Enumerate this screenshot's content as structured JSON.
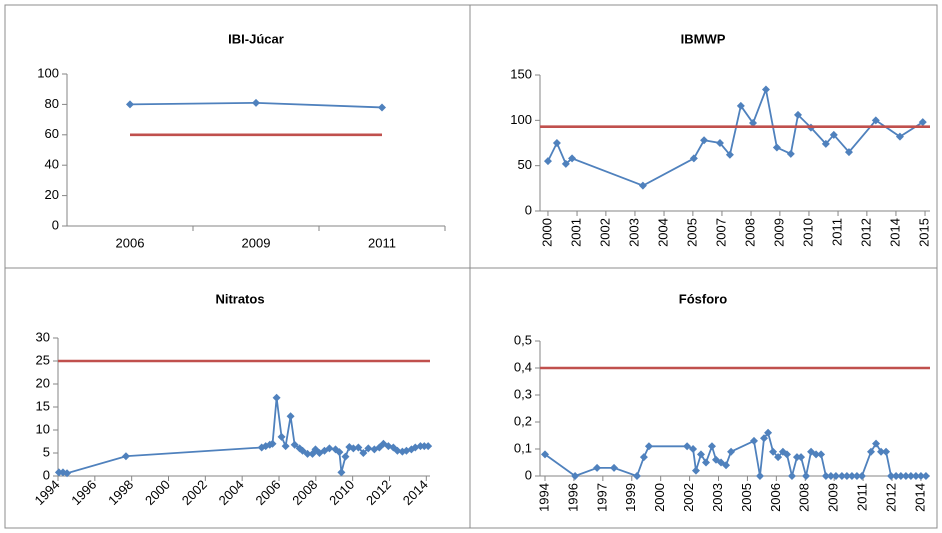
{
  "chart_data": [
    {
      "type": "line",
      "title": "IBI-Júcar",
      "categories": [
        "2006",
        "2009",
        "2011"
      ],
      "series": [
        {
          "color": "#4f81bd",
          "marker": "diamond",
          "values": [
            80,
            81,
            78
          ]
        },
        {
          "color": "#c0504d",
          "values": [
            60,
            60,
            60
          ]
        }
      ],
      "ylim": [
        0,
        100
      ],
      "yticks": [
        0,
        20,
        40,
        60,
        80,
        100
      ]
    },
    {
      "type": "line",
      "title": "IBMWP",
      "x_label_rotation": -90,
      "xlim": [
        1999.68,
        2015.37
      ],
      "xticks": [
        {
          "value": 2000.0,
          "label": "2000"
        },
        {
          "value": 2001.17,
          "label": "2001"
        },
        {
          "value": 2002.33,
          "label": "2002"
        },
        {
          "value": 2003.5,
          "label": "2003"
        },
        {
          "value": 2004.67,
          "label": "2004"
        },
        {
          "value": 2005.83,
          "label": "2005"
        },
        {
          "value": 2007.0,
          "label": "2007"
        },
        {
          "value": 2008.17,
          "label": "2008"
        },
        {
          "value": 2009.33,
          "label": "2009"
        },
        {
          "value": 2010.5,
          "label": "2010"
        },
        {
          "value": 2011.67,
          "label": "2011"
        },
        {
          "value": 2012.83,
          "label": "2012"
        },
        {
          "value": 2014.0,
          "label": "2014"
        },
        {
          "value": 2015.17,
          "label": "2015"
        }
      ],
      "series": [
        {
          "color": "#4f81bd",
          "marker": "diamond",
          "x": [
            2000.0,
            2000.36,
            2000.72,
            2000.97,
            2003.82,
            2005.87,
            2006.28,
            2006.92,
            2007.32,
            2007.76,
            2008.25,
            2008.77,
            2009.21,
            2009.77,
            2010.06,
            2010.58,
            2011.18,
            2011.5,
            2012.11,
            2013.19,
            2014.16,
            2015.08
          ],
          "values": [
            55,
            75,
            52,
            58,
            28,
            58,
            78,
            75,
            62,
            116,
            97,
            134,
            70,
            63,
            106,
            92,
            74,
            84,
            65,
            100,
            82,
            98
          ]
        },
        {
          "color": "#c0504d",
          "x": [
            1999.68,
            2015.37
          ],
          "values": [
            93,
            93
          ]
        }
      ],
      "ylim": [
        0,
        150
      ],
      "yticks": [
        0,
        50,
        100,
        150
      ]
    },
    {
      "type": "line",
      "title": "Nitratos",
      "x_label_rotation": -45,
      "xlim": [
        1994,
        2014.2
      ],
      "xticks": [
        1994,
        1996,
        1998,
        2000,
        2002,
        2004,
        2006,
        2008,
        2010,
        2012,
        2014
      ],
      "series": [
        {
          "color": "#4f81bd",
          "marker": "diamond",
          "x": [
            1994.05,
            1994.27,
            1994.49,
            1997.69,
            2005.06,
            2005.28,
            2005.5,
            2005.65,
            2005.87,
            2006.14,
            2006.36,
            2006.63,
            2006.85,
            2007.12,
            2007.28,
            2007.55,
            2007.82,
            2007.98,
            2008.2,
            2008.47,
            2008.74,
            2009.07,
            2009.28,
            2009.39,
            2009.61,
            2009.82,
            2010.04,
            2010.31,
            2010.58,
            2010.85,
            2011.18,
            2011.45,
            2011.67,
            2011.94,
            2012.21,
            2012.43,
            2012.7,
            2012.92,
            2013.19,
            2013.4,
            2013.68,
            2013.89,
            2014.1
          ],
          "values": [
            0.8,
            0.8,
            0.6,
            4.3,
            6.2,
            6.5,
            6.8,
            7,
            17,
            8.5,
            6.5,
            13,
            6.8,
            6,
            5.5,
            4.8,
            4.8,
            5.8,
            5,
            5.5,
            6,
            5.8,
            5.2,
            0.8,
            4.2,
            6.3,
            6,
            6.2,
            5,
            6,
            5.8,
            6.2,
            7,
            6.5,
            6.2,
            5.5,
            5.3,
            5.5,
            5.8,
            6.2,
            6.5,
            6.5,
            6.5
          ]
        },
        {
          "color": "#c0504d",
          "x": [
            1994,
            2014.2
          ],
          "values": [
            25,
            25
          ]
        }
      ],
      "ylim": [
        0,
        30
      ],
      "yticks": [
        0,
        5,
        10,
        15,
        20,
        25,
        30
      ]
    },
    {
      "type": "line",
      "title": "Fósforo",
      "x_label_rotation": -90,
      "xlim": [
        1994.24,
        2014.47
      ],
      "xticks": [
        {
          "value": 1994.5,
          "label": "1994"
        },
        {
          "value": 1996.0,
          "label": "1996"
        },
        {
          "value": 1997.5,
          "label": "1997"
        },
        {
          "value": 1999.0,
          "label": "1999"
        },
        {
          "value": 2000.5,
          "label": "2000"
        },
        {
          "value": 2002.0,
          "label": "2002"
        },
        {
          "value": 2003.5,
          "label": "2003"
        },
        {
          "value": 2005.0,
          "label": "2005"
        },
        {
          "value": 2006.5,
          "label": "2006"
        },
        {
          "value": 2008.0,
          "label": "2008"
        },
        {
          "value": 2009.5,
          "label": "2009"
        },
        {
          "value": 2011.0,
          "label": "2011"
        },
        {
          "value": 2012.5,
          "label": "2012"
        },
        {
          "value": 2014.0,
          "label": "2014"
        }
      ],
      "series": [
        {
          "color": "#4f81bd",
          "marker": "diamond",
          "x": [
            1994.5,
            1996.06,
            1997.2,
            1998.08,
            1999.27,
            1999.63,
            1999.89,
            2001.87,
            2002.18,
            2002.33,
            2002.59,
            2002.85,
            2003.16,
            2003.37,
            2003.63,
            2003.89,
            2004.15,
            2005.34,
            2005.65,
            2005.86,
            2006.07,
            2006.33,
            2006.59,
            2006.84,
            2007.05,
            2007.31,
            2007.57,
            2007.78,
            2008.04,
            2008.3,
            2008.56,
            2008.82,
            2009.07,
            2009.33,
            2009.59,
            2009.9,
            2010.16,
            2010.42,
            2010.68,
            2010.94,
            2011.41,
            2011.67,
            2011.93,
            2012.19,
            2012.45,
            2012.71,
            2012.96,
            2013.22,
            2013.48,
            2013.74,
            2014.0,
            2014.26
          ],
          "values": [
            0.08,
            0,
            0.03,
            0.03,
            0,
            0.07,
            0.11,
            0.11,
            0.1,
            0.02,
            0.08,
            0.05,
            0.11,
            0.06,
            0.05,
            0.04,
            0.09,
            0.13,
            0,
            0.14,
            0.16,
            0.09,
            0.07,
            0.09,
            0.08,
            0,
            0.07,
            0.07,
            0,
            0.09,
            0.08,
            0.08,
            0,
            0,
            0,
            0,
            0,
            0,
            0,
            0,
            0.09,
            0.12,
            0.09,
            0.09,
            0,
            0,
            0,
            0,
            0,
            0,
            0,
            0
          ]
        },
        {
          "color": "#c0504d",
          "x": [
            1994.24,
            2014.47
          ],
          "values": [
            0.4,
            0.4
          ]
        }
      ],
      "ylim": [
        0,
        0.5
      ],
      "yticks": [
        0,
        {
          "value": 0.1,
          "label": "0,1"
        },
        {
          "value": 0.2,
          "label": "0,2"
        },
        {
          "value": 0.3,
          "label": "0,3"
        },
        {
          "value": 0.4,
          "label": "0,4"
        },
        {
          "value": 0.5,
          "label": "0,5"
        }
      ]
    }
  ]
}
